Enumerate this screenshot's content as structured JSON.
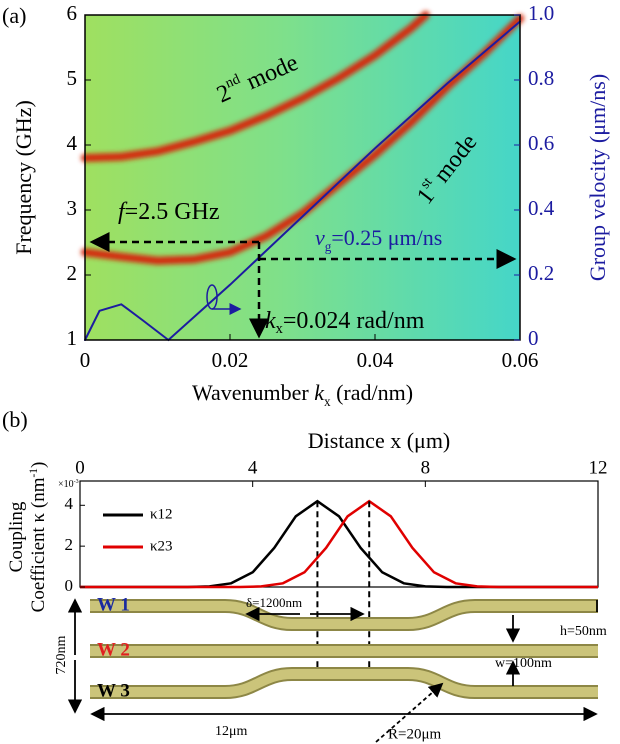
{
  "chart_data": [
    {
      "type": "line",
      "label": "(a)",
      "x_label": [
        {
          "t": "Wavenumber "
        },
        {
          "t": "k",
          "style": "italic"
        },
        {
          "t": "x",
          "style": "sub"
        },
        {
          "t": " (rad/nm)"
        }
      ],
      "y_label": "Frequency (GHz)",
      "y2_label": "Group velocity (μm/ns)",
      "xlim": [
        0,
        0.06
      ],
      "xticks": [
        0,
        0.02,
        0.04,
        0.06
      ],
      "ylim": [
        1,
        6
      ],
      "yticks": [
        1,
        2,
        3,
        4,
        5,
        6
      ],
      "y2lim": [
        0,
        1
      ],
      "y2ticks": [
        0,
        0.2,
        0.4,
        0.6,
        0.8,
        {
          "value": 1,
          "label": "1.0"
        }
      ],
      "series": [
        {
          "color": "#d42a10",
          "style": "band",
          "x": [
            0,
            0.005,
            0.01,
            0.015,
            0.02,
            0.025,
            0.03,
            0.035,
            0.04,
            0.045,
            0.05,
            0.055,
            0.06
          ],
          "values": [
            2.35,
            2.28,
            2.22,
            2.24,
            2.35,
            2.6,
            2.95,
            3.4,
            3.85,
            4.35,
            4.9,
            5.4,
            5.95
          ]
        },
        {
          "color": "#d42a10",
          "style": "band",
          "x": [
            0,
            0.005,
            0.01,
            0.015,
            0.02,
            0.025,
            0.03,
            0.035,
            0.04,
            0.045,
            0.047
          ],
          "values": [
            3.8,
            3.82,
            3.9,
            4.05,
            4.22,
            4.45,
            4.72,
            5.03,
            5.38,
            5.8,
            6.0
          ]
        },
        {
          "color": "#1c1ca0",
          "style": "line",
          "axis": "y2",
          "x": [
            0,
            0.002,
            0.005,
            0.008,
            0.0115,
            0.02,
            0.03,
            0.04,
            0.05,
            0.06
          ],
          "values": [
            0,
            0.09,
            0.11,
            0.06,
            0,
            0.17,
            0.38,
            0.59,
            0.79,
            0.98
          ]
        }
      ],
      "annotations": [
        [
          {
            "t": "2"
          },
          {
            "t": "nd",
            "style": "sup"
          },
          {
            "t": " mode"
          }
        ],
        [
          {
            "t": "1"
          },
          {
            "t": "st",
            "style": "sup"
          },
          {
            "t": " mode"
          }
        ],
        [
          {
            "t": "f",
            "style": "italic"
          },
          {
            "t": "=2.5 GHz"
          }
        ],
        [
          {
            "t": "v",
            "style": "italic"
          },
          {
            "t": "g",
            "style": "sub"
          },
          {
            "t": "=0.25 μm/ns"
          }
        ],
        [
          {
            "t": "k",
            "style": "italic"
          },
          {
            "t": "x",
            "style": "sub"
          },
          {
            "t": "=0.024 rad/nm"
          }
        ]
      ]
    },
    {
      "type": "line",
      "label": "(b)",
      "x_label": [
        {
          "t": "Distance x (μm)"
        }
      ],
      "y_label_lines": [
        [
          {
            "t": "Coupling"
          }
        ],
        [
          {
            "t": "Coefficient κ (nm"
          },
          {
            "t": "-1",
            "style": "sup"
          },
          {
            "t": ")"
          }
        ]
      ],
      "multiplier": [
        {
          "t": "×10"
        },
        {
          "t": "-3",
          "style": "sup"
        }
      ],
      "xlim": [
        0,
        12
      ],
      "xticks": [
        0,
        4,
        8,
        12
      ],
      "ylim": [
        0,
        4.7
      ],
      "yticks": [
        0,
        2,
        4
      ],
      "series": [
        {
          "name": "κ12",
          "color": "#000000",
          "x": [
            0,
            2.5,
            3,
            3.5,
            4,
            4.5,
            5,
            5.5,
            6,
            6.5,
            7,
            7.5,
            8,
            8.5,
            12
          ],
          "values": [
            0,
            0,
            0.03,
            0.18,
            0.72,
            1.92,
            3.46,
            4.2,
            3.46,
            1.92,
            0.72,
            0.18,
            0.03,
            0,
            0
          ]
        },
        {
          "name": "κ23",
          "color": "#e00000",
          "x": [
            0,
            3.7,
            4.2,
            4.7,
            5.2,
            5.7,
            6.2,
            6.7,
            7.2,
            7.7,
            8.2,
            8.7,
            9.2,
            9.7,
            12
          ],
          "values": [
            0,
            0,
            0.03,
            0.18,
            0.72,
            1.92,
            3.46,
            4.2,
            3.46,
            1.92,
            0.72,
            0.18,
            0.03,
            0,
            0
          ]
        }
      ]
    }
  ],
  "diagram": {
    "w1": "W 1",
    "w2": "W 2",
    "w3": "W 3",
    "delta": "δ=1200nm",
    "h": "h=50nm",
    "w": "w=100nm",
    "gap": "720nm",
    "length": "12μm",
    "radius": "R=20μm"
  }
}
